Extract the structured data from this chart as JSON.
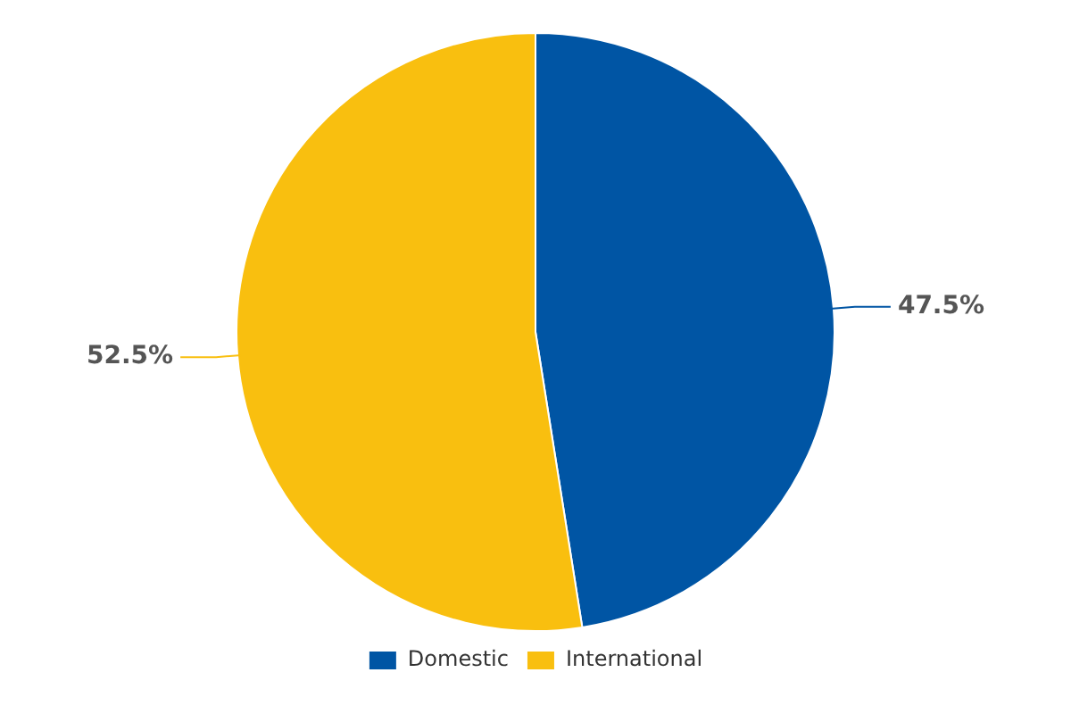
{
  "chart_data": {
    "type": "pie",
    "categories": [
      "Domestic",
      "International"
    ],
    "values": [
      47.5,
      52.5
    ],
    "colors": [
      "#0055a4",
      "#f9bf0f"
    ],
    "value_labels": [
      "47.5%",
      "52.5%"
    ],
    "legend": "bottom"
  }
}
